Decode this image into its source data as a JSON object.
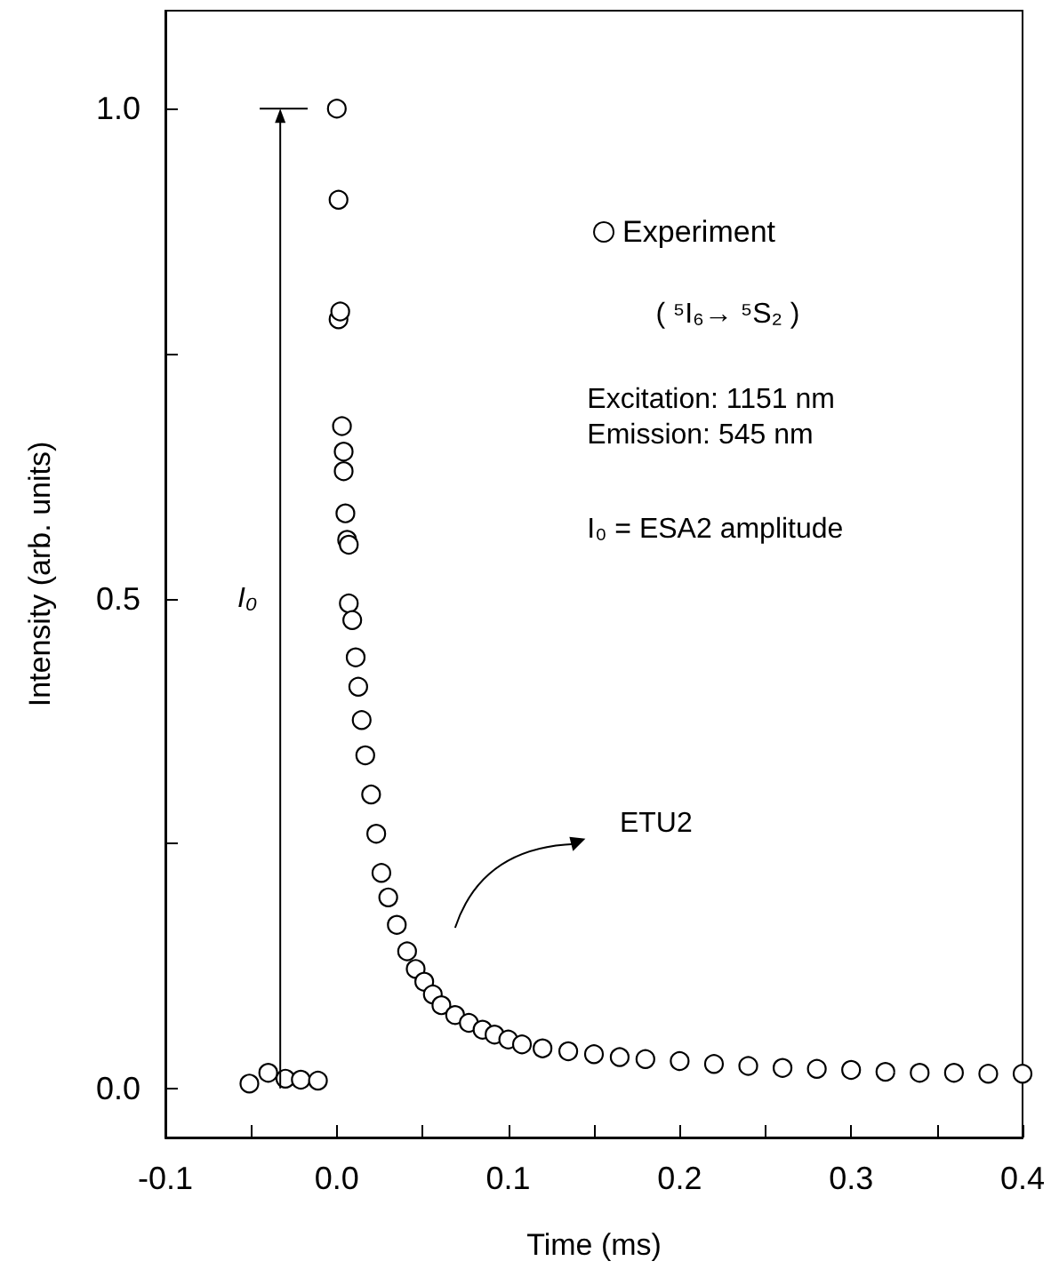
{
  "chart_data": {
    "type": "scatter",
    "xlabel": "Time (ms)",
    "ylabel": "Intensity (arb. units)",
    "xlim": [
      -0.1,
      0.4
    ],
    "ylim": [
      -0.05,
      1.1
    ],
    "xticks": [
      -0.1,
      {
        "value": -0.05,
        "label": null
      },
      {
        "value": 0,
        "label": "0.0"
      },
      {
        "value": 0.05,
        "label": null
      },
      0.1,
      {
        "value": 0.15,
        "label": null
      },
      0.2,
      {
        "value": 0.25,
        "label": null
      },
      0.3,
      {
        "value": 0.35,
        "label": null
      },
      0.4
    ],
    "yticks": [
      {
        "value": 0,
        "label": "0.0"
      },
      {
        "value": 0.25,
        "label": null
      },
      0.5,
      {
        "value": 0.75,
        "label": null
      },
      {
        "value": 1,
        "label": "1.0"
      }
    ],
    "grid": false,
    "legend": "top right",
    "marker": "circle",
    "series": [
      {
        "name": "Experiment",
        "color": "#000000",
        "x": [
          -0.051,
          -0.04,
          -0.03,
          -0.021,
          -0.011,
          0.0,
          0.001,
          0.001,
          0.002,
          0.003,
          0.004,
          0.004,
          0.005,
          0.006,
          0.007,
          0.007,
          0.009,
          0.011,
          0.0125,
          0.0145,
          0.0166,
          0.02,
          0.023,
          0.026,
          0.03,
          0.035,
          0.041,
          0.046,
          0.051,
          0.056,
          0.061,
          0.069,
          0.077,
          0.085,
          0.092,
          0.1,
          0.108,
          0.12,
          0.135,
          0.15,
          0.165,
          0.18,
          0.2,
          0.22,
          0.24,
          0.26,
          0.28,
          0.3,
          0.32,
          0.34,
          0.36,
          0.38,
          0.4
        ],
        "values": [
          0.005,
          0.016,
          0.01,
          0.009,
          0.008,
          1.0,
          0.907,
          0.785,
          0.793,
          0.676,
          0.65,
          0.63,
          0.587,
          0.56,
          0.555,
          0.495,
          0.478,
          0.44,
          0.41,
          0.376,
          0.34,
          0.3,
          0.26,
          0.22,
          0.195,
          0.167,
          0.14,
          0.122,
          0.109,
          0.096,
          0.085,
          0.075,
          0.067,
          0.06,
          0.055,
          0.05,
          0.045,
          0.041,
          0.038,
          0.035,
          0.032,
          0.03,
          0.028,
          0.025,
          0.023,
          0.021,
          0.02,
          0.019,
          0.017,
          0.016,
          0.016,
          0.015,
          0.015
        ]
      }
    ],
    "annotations": [
      "( ⁵I₆→ ⁵S₂ )",
      "Excitation: 1151 nm\nEmission: 545 nm",
      "I₀ = ESA2 amplitude",
      "I₀",
      "ETU2"
    ]
  }
}
